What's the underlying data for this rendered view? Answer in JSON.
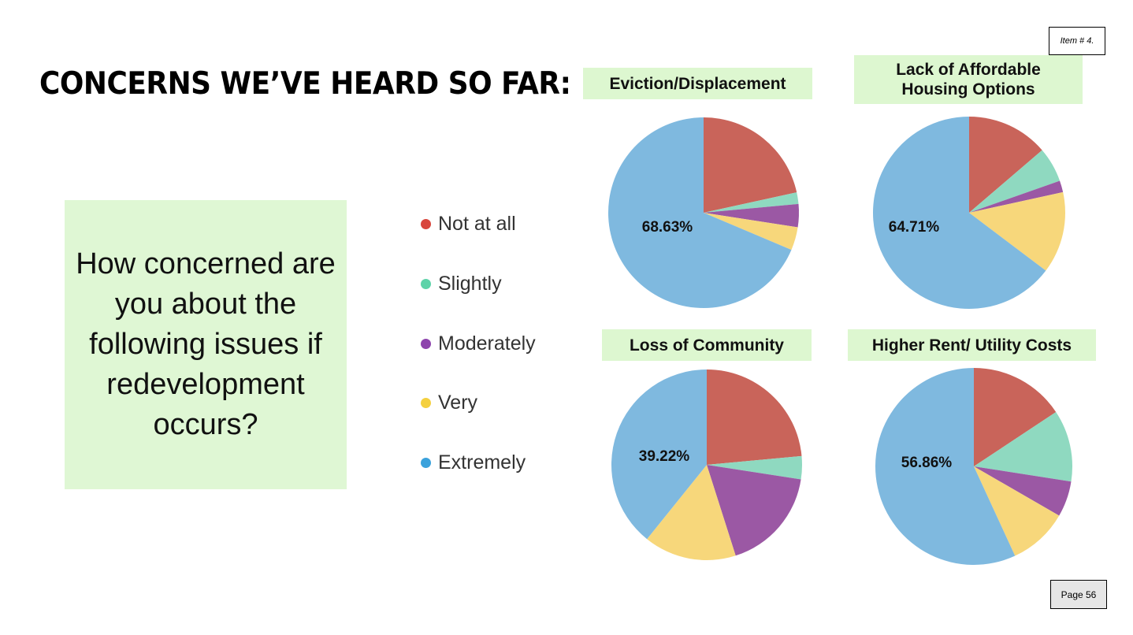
{
  "header": {
    "title": "CONCERNS WE’VE HEARD SO FAR:",
    "item_label": "Item # 4."
  },
  "question": "How concerned are you about the following issues if redevelopment occurs?",
  "footer": {
    "page_label": "Page 56"
  },
  "colors": {
    "Not at all": "#c9645a",
    "Slightly": "#8fd9c0",
    "Moderately": "#9b58a4",
    "Very": "#f7d77b",
    "Extremely": "#7fb9df"
  },
  "legend": [
    {
      "label": "Not at all",
      "color": "#d8453c"
    },
    {
      "label": "Slightly",
      "color": "#5ed3a9"
    },
    {
      "label": "Moderately",
      "color": "#8e44ad"
    },
    {
      "label": "Very",
      "color": "#f4d03f"
    },
    {
      "label": "Extremely",
      "color": "#3ba2dc"
    }
  ],
  "chart_data": [
    {
      "type": "pie",
      "title": "Eviction/Displacement",
      "categories": [
        "Not at all",
        "Slightly",
        "Moderately",
        "Very",
        "Extremely"
      ],
      "values": [
        21.57,
        1.96,
        3.92,
        3.92,
        68.63
      ],
      "label": "68.63%"
    },
    {
      "type": "pie",
      "title": "Lack of Affordable Housing Options",
      "categories": [
        "Not at all",
        "Slightly",
        "Moderately",
        "Very",
        "Extremely"
      ],
      "values": [
        13.73,
        5.88,
        1.96,
        13.73,
        64.71
      ],
      "label": "64.71%"
    },
    {
      "type": "pie",
      "title": "Loss of Community",
      "categories": [
        "Not at all",
        "Slightly",
        "Moderately",
        "Very",
        "Extremely"
      ],
      "values": [
        23.53,
        3.92,
        17.65,
        15.69,
        39.22
      ],
      "label": "39.22%"
    },
    {
      "type": "pie",
      "title": "Higher Rent/ Utility Costs",
      "categories": [
        "Not at all",
        "Slightly",
        "Moderately",
        "Very",
        "Extremely"
      ],
      "values": [
        15.69,
        11.76,
        5.88,
        9.8,
        56.86
      ],
      "label": "56.86%"
    }
  ]
}
